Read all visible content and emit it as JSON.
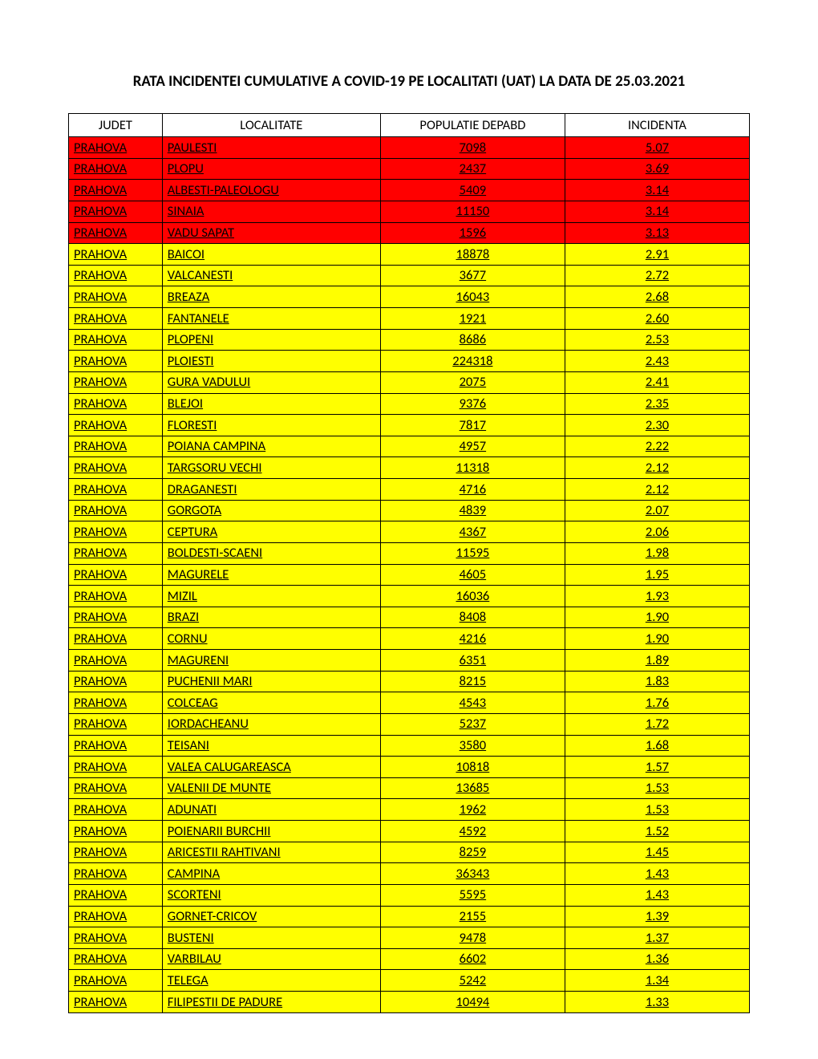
{
  "title": "RATA INCIDENTEI CUMULATIVE A COVID-19 PE LOCALITATI (UAT) LA DATA DE 25.03.2021",
  "colors": {
    "red": "#ff0000",
    "yellow": "#ffff00",
    "white": "#ffffff",
    "border": "#000000",
    "text": "#000000"
  },
  "columns": [
    "JUDET",
    "LOCALITATE",
    "POPULATIE DEPABD",
    "INCIDENTA"
  ],
  "rows": [
    {
      "judet": "PRAHOVA",
      "localitate": "PAULESTI",
      "populatie": "7098",
      "incidenta": "5.07",
      "bg": "red"
    },
    {
      "judet": "PRAHOVA",
      "localitate": "PLOPU",
      "populatie": "2437",
      "incidenta": "3.69",
      "bg": "red"
    },
    {
      "judet": "PRAHOVA",
      "localitate": "ALBESTI-PALEOLOGU",
      "populatie": "5409",
      "incidenta": "3.14",
      "bg": "red"
    },
    {
      "judet": "PRAHOVA",
      "localitate": "SINAIA",
      "populatie": "11150",
      "incidenta": "3.14",
      "bg": "red"
    },
    {
      "judet": "PRAHOVA",
      "localitate": "VADU SAPAT",
      "populatie": "1596",
      "incidenta": "3.13",
      "bg": "red"
    },
    {
      "judet": "PRAHOVA",
      "localitate": "BAICOI",
      "populatie": "18878",
      "incidenta": "2.91",
      "bg": "yellow"
    },
    {
      "judet": "PRAHOVA",
      "localitate": "VALCANESTI",
      "populatie": "3677",
      "incidenta": "2.72",
      "bg": "yellow"
    },
    {
      "judet": "PRAHOVA",
      "localitate": "BREAZA",
      "populatie": "16043",
      "incidenta": "2.68",
      "bg": "yellow"
    },
    {
      "judet": "PRAHOVA",
      "localitate": "FANTANELE",
      "populatie": "1921",
      "incidenta": "2.60",
      "bg": "yellow"
    },
    {
      "judet": "PRAHOVA",
      "localitate": "PLOPENI",
      "populatie": "8686",
      "incidenta": "2.53",
      "bg": "yellow"
    },
    {
      "judet": "PRAHOVA",
      "localitate": "PLOIESTI",
      "populatie": "224318",
      "incidenta": "2.43",
      "bg": "yellow"
    },
    {
      "judet": "PRAHOVA",
      "localitate": "GURA VADULUI",
      "populatie": "2075",
      "incidenta": "2.41",
      "bg": "yellow"
    },
    {
      "judet": "PRAHOVA",
      "localitate": "BLEJOI",
      "populatie": "9376",
      "incidenta": "2.35",
      "bg": "yellow"
    },
    {
      "judet": "PRAHOVA",
      "localitate": "FLORESTI",
      "populatie": "7817",
      "incidenta": "2.30",
      "bg": "yellow"
    },
    {
      "judet": "PRAHOVA",
      "localitate": "POIANA CAMPINA",
      "populatie": "4957",
      "incidenta": "2.22",
      "bg": "yellow"
    },
    {
      "judet": "PRAHOVA",
      "localitate": "TARGSORU VECHI",
      "populatie": "11318",
      "incidenta": "2.12",
      "bg": "yellow"
    },
    {
      "judet": "PRAHOVA",
      "localitate": "DRAGANESTI",
      "populatie": "4716",
      "incidenta": "2.12",
      "bg": "yellow"
    },
    {
      "judet": "PRAHOVA",
      "localitate": "GORGOTA",
      "populatie": "4839",
      "incidenta": "2.07",
      "bg": "yellow"
    },
    {
      "judet": "PRAHOVA",
      "localitate": "CEPTURA",
      "populatie": "4367",
      "incidenta": "2.06",
      "bg": "yellow"
    },
    {
      "judet": "PRAHOVA",
      "localitate": "BOLDESTI-SCAENI",
      "populatie": "11595",
      "incidenta": "1.98",
      "bg": "yellow"
    },
    {
      "judet": "PRAHOVA",
      "localitate": "MAGURELE",
      "populatie": "4605",
      "incidenta": "1.95",
      "bg": "yellow"
    },
    {
      "judet": "PRAHOVA",
      "localitate": "MIZIL",
      "populatie": "16036",
      "incidenta": "1.93",
      "bg": "yellow"
    },
    {
      "judet": "PRAHOVA",
      "localitate": "BRAZI",
      "populatie": "8408",
      "incidenta": "1.90",
      "bg": "yellow"
    },
    {
      "judet": "PRAHOVA",
      "localitate": "CORNU",
      "populatie": "4216",
      "incidenta": "1.90",
      "bg": "yellow"
    },
    {
      "judet": "PRAHOVA",
      "localitate": "MAGURENI",
      "populatie": "6351",
      "incidenta": "1.89",
      "bg": "yellow"
    },
    {
      "judet": "PRAHOVA",
      "localitate": "PUCHENII MARI",
      "populatie": "8215",
      "incidenta": "1.83",
      "bg": "yellow"
    },
    {
      "judet": "PRAHOVA",
      "localitate": "COLCEAG",
      "populatie": "4543",
      "incidenta": "1.76",
      "bg": "yellow"
    },
    {
      "judet": "PRAHOVA",
      "localitate": "IORDACHEANU",
      "populatie": "5237",
      "incidenta": "1.72",
      "bg": "yellow"
    },
    {
      "judet": "PRAHOVA",
      "localitate": "TEISANI",
      "populatie": "3580",
      "incidenta": "1.68",
      "bg": "yellow"
    },
    {
      "judet": "PRAHOVA",
      "localitate": "VALEA CALUGAREASCA",
      "populatie": "10818",
      "incidenta": "1.57",
      "bg": "yellow"
    },
    {
      "judet": "PRAHOVA",
      "localitate": "VALENII DE MUNTE",
      "populatie": "13685",
      "incidenta": "1.53",
      "bg": "yellow"
    },
    {
      "judet": "PRAHOVA",
      "localitate": "ADUNATI",
      "populatie": "1962",
      "incidenta": "1.53",
      "bg": "yellow"
    },
    {
      "judet": "PRAHOVA",
      "localitate": "POIENARII BURCHII",
      "populatie": "4592",
      "incidenta": "1.52",
      "bg": "yellow"
    },
    {
      "judet": "PRAHOVA",
      "localitate": "ARICESTII RAHTIVANI",
      "populatie": "8259",
      "incidenta": "1.45",
      "bg": "yellow"
    },
    {
      "judet": "PRAHOVA",
      "localitate": "CAMPINA",
      "populatie": "36343",
      "incidenta": "1.43",
      "bg": "yellow"
    },
    {
      "judet": "PRAHOVA",
      "localitate": "SCORTENI",
      "populatie": "5595",
      "incidenta": "1.43",
      "bg": "yellow"
    },
    {
      "judet": "PRAHOVA",
      "localitate": "GORNET-CRICOV",
      "populatie": "2155",
      "incidenta": "1.39",
      "bg": "yellow"
    },
    {
      "judet": "PRAHOVA",
      "localitate": "BUSTENI",
      "populatie": "9478",
      "incidenta": "1.37",
      "bg": "yellow"
    },
    {
      "judet": "PRAHOVA",
      "localitate": "VARBILAU",
      "populatie": "6602",
      "incidenta": "1.36",
      "bg": "yellow"
    },
    {
      "judet": "PRAHOVA",
      "localitate": "TELEGA",
      "populatie": "5242",
      "incidenta": "1.34",
      "bg": "yellow"
    },
    {
      "judet": "PRAHOVA",
      "localitate": "FILIPESTII DE PADURE",
      "populatie": "10494",
      "incidenta": "1.33",
      "bg": "yellow"
    }
  ]
}
